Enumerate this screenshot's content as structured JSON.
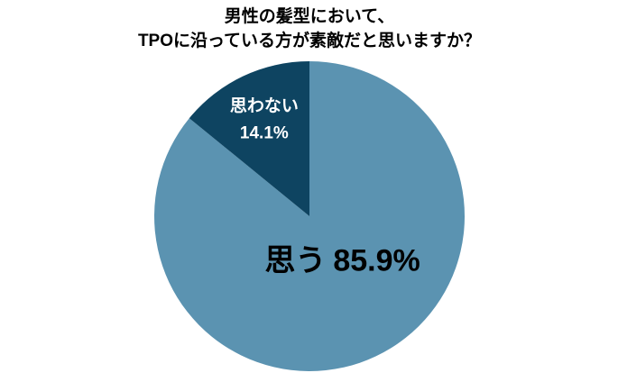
{
  "chart_data": {
    "type": "pie",
    "title": [
      "男性の髪型において、",
      "TPOに沿っている方が素敵だと思いますか？"
    ],
    "categories": [
      "思う",
      "思わない"
    ],
    "values": [
      85.9,
      14.1
    ],
    "value_labels": [
      "85.9%",
      "14.1%"
    ],
    "colors": [
      "#5b93b1",
      "#0e4461"
    ]
  }
}
